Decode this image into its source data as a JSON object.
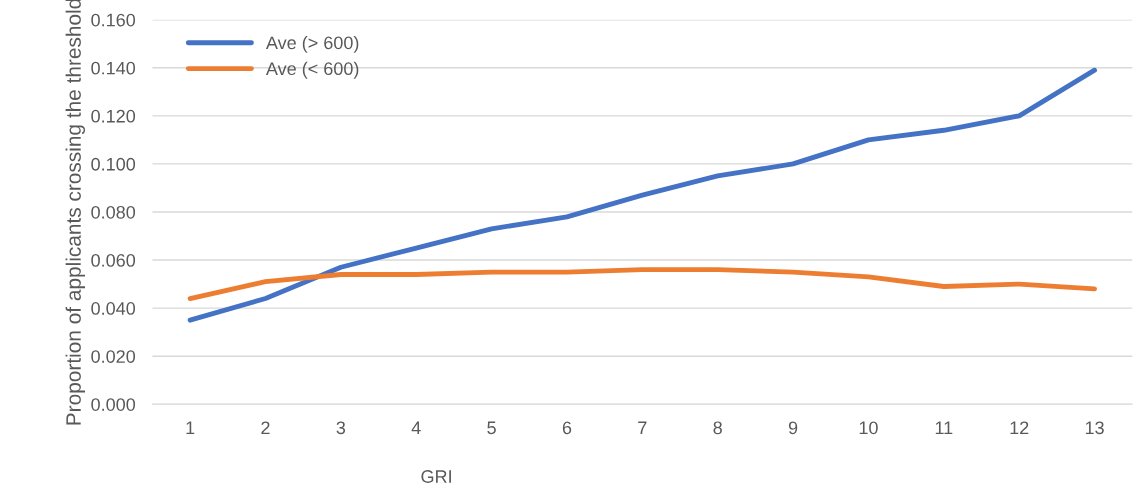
{
  "chart_data": {
    "type": "line",
    "xlabel": "GRI",
    "ylabel": "Proportion of applicants crossing the threshold",
    "categories": [
      "1",
      "2",
      "3",
      "4",
      "5",
      "6",
      "7",
      "8",
      "9",
      "10",
      "11",
      "12",
      "13"
    ],
    "series": [
      {
        "name": "Ave (> 600)",
        "color": "#4472c4",
        "values": [
          0.035,
          0.044,
          0.057,
          0.065,
          0.073,
          0.078,
          0.087,
          0.095,
          0.1,
          0.11,
          0.114,
          0.12,
          0.139
        ]
      },
      {
        "name": "Ave (< 600)",
        "color": "#ed7d31",
        "values": [
          0.044,
          0.051,
          0.054,
          0.054,
          0.055,
          0.055,
          0.056,
          0.056,
          0.055,
          0.053,
          0.049,
          0.05,
          0.048
        ]
      }
    ],
    "ylim": [
      0,
      0.16
    ],
    "yticks": [
      {
        "value": 0,
        "label": "0.000"
      },
      {
        "value": 0.02,
        "label": "0.020"
      },
      {
        "value": 0.04,
        "label": "0.040"
      },
      {
        "value": 0.06,
        "label": "0.060"
      },
      {
        "value": 0.08,
        "label": "0.080"
      },
      {
        "value": 0.1,
        "label": "0.100"
      },
      {
        "value": 0.12,
        "label": "0.120"
      },
      {
        "value": 0.14,
        "label": "0.140"
      },
      {
        "value": 0.16,
        "label": "0.160"
      }
    ],
    "grid": "y",
    "legend": "top left",
    "marker": "none",
    "line_style": "solid"
  }
}
